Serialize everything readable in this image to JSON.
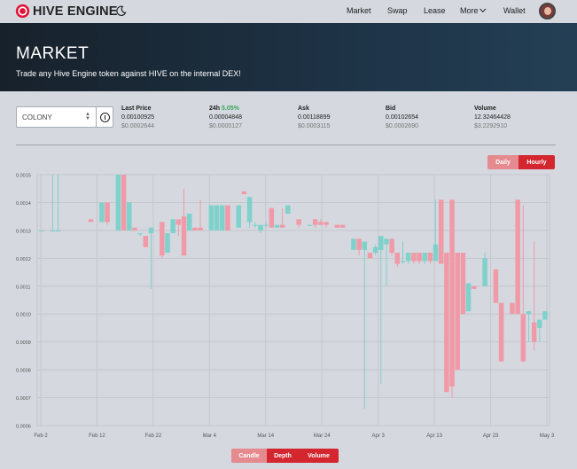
{
  "header": {
    "logo_text": "HIVE ENGINE",
    "nav": [
      {
        "label": "Market"
      },
      {
        "label": "Swap"
      },
      {
        "label": "Lease"
      },
      {
        "label": "More"
      },
      {
        "label": "Wallet"
      }
    ]
  },
  "hero": {
    "title": "MARKET",
    "subtitle": "Trade any Hive Engine token against HIVE on the internal DEX!"
  },
  "token_select": {
    "value": "COLONY"
  },
  "stats": {
    "last_price": {
      "label": "Last Price",
      "value": "0.00100925",
      "usd": "$0.0002644"
    },
    "change_24h": {
      "label": "24h",
      "percent": "5.05%",
      "value": "0.00004848",
      "usd": "$0.0000127"
    },
    "ask": {
      "label": "Ask",
      "value": "0.00118899",
      "usd": "$0.0003115"
    },
    "bid": {
      "label": "Bid",
      "value": "0.00102654",
      "usd": "$0.0002690"
    },
    "volume": {
      "label": "Volume",
      "value": "12.32464428",
      "usd": "$3.2292910"
    }
  },
  "interval_buttons": {
    "daily": "Daily",
    "hourly": "Hourly"
  },
  "chart_buttons": {
    "candle": "Candle",
    "depth": "Depth",
    "volume": "Volume"
  },
  "colors": {
    "up": "#7fd1cb",
    "down": "#f09aa7",
    "accent": "#d3262f",
    "accent_light": "#e58a8f"
  },
  "chart_data": {
    "type": "candlestick",
    "x_ticks": [
      "Feb 2",
      "Feb 12",
      "Feb 22",
      "Mar 4",
      "Mar 14",
      "Mar 24",
      "Apr 3",
      "Apr 13",
      "Apr 23",
      "May 3"
    ],
    "y_ticks": [
      "0.0015",
      "0.0014",
      "0.0013",
      "0.0012",
      "0.0011",
      "0.0010",
      "0.0009",
      "0.0008",
      "0.0007",
      "0.0006"
    ],
    "ylim": [
      0.0006,
      0.0015
    ],
    "xlim": [
      0,
      92
    ],
    "grid": true,
    "candles": [
      {
        "x": 0,
        "open": 0.0013,
        "close": 0.0013,
        "high": 0.0013,
        "low": 0.0013
      },
      {
        "x": 2,
        "open": 0.0013,
        "close": 0.0013,
        "high": 0.0015,
        "low": 0.0013
      },
      {
        "x": 3,
        "open": 0.0013,
        "close": 0.0013,
        "high": 0.0015,
        "low": 0.0013
      },
      {
        "x": 9,
        "open": 0.00134,
        "close": 0.00133,
        "high": 0.00134,
        "low": 0.00133
      },
      {
        "x": 11,
        "open": 0.00133,
        "close": 0.0014,
        "high": 0.0014,
        "low": 0.00133
      },
      {
        "x": 12,
        "open": 0.0014,
        "close": 0.00133,
        "high": 0.0014,
        "low": 0.00132
      },
      {
        "x": 14,
        "open": 0.0013,
        "close": 0.0015,
        "high": 0.0015,
        "low": 0.0013
      },
      {
        "x": 15,
        "open": 0.0015,
        "close": 0.0013,
        "high": 0.0015,
        "low": 0.0013
      },
      {
        "x": 16,
        "open": 0.0013,
        "close": 0.0014,
        "high": 0.0014,
        "low": 0.0013
      },
      {
        "x": 17,
        "open": 0.00131,
        "close": 0.0013,
        "high": 0.00131,
        "low": 0.0013
      },
      {
        "x": 18,
        "open": 0.00129,
        "close": 0.00129,
        "high": 0.00129,
        "low": 0.00128
      },
      {
        "x": 19,
        "open": 0.00128,
        "close": 0.00124,
        "high": 0.00128,
        "low": 0.00124
      },
      {
        "x": 20,
        "open": 0.00129,
        "close": 0.00131,
        "high": 0.00131,
        "low": 0.00109
      },
      {
        "x": 22,
        "open": 0.00133,
        "close": 0.00121,
        "high": 0.00133,
        "low": 0.0012
      },
      {
        "x": 23,
        "open": 0.00122,
        "close": 0.00129,
        "high": 0.00129,
        "low": 0.00122
      },
      {
        "x": 24,
        "open": 0.00129,
        "close": 0.00134,
        "high": 0.00134,
        "low": 0.00129
      },
      {
        "x": 25,
        "open": 0.00134,
        "close": 0.00132,
        "high": 0.00134,
        "low": 0.00128
      },
      {
        "x": 26,
        "open": 0.00135,
        "close": 0.00121,
        "high": 0.00145,
        "low": 0.00121
      },
      {
        "x": 27,
        "open": 0.0013,
        "close": 0.00136,
        "high": 0.00136,
        "low": 0.0013
      },
      {
        "x": 28,
        "open": 0.00131,
        "close": 0.0013,
        "high": 0.00131,
        "low": 0.0013
      },
      {
        "x": 29,
        "open": 0.00131,
        "close": 0.0013,
        "high": 0.00141,
        "low": 0.0013
      },
      {
        "x": 31,
        "open": 0.0013,
        "close": 0.00139,
        "high": 0.00139,
        "low": 0.0013
      },
      {
        "x": 32,
        "open": 0.0013,
        "close": 0.00139,
        "high": 0.00139,
        "low": 0.0013
      },
      {
        "x": 33,
        "open": 0.0013,
        "close": 0.00139,
        "high": 0.00139,
        "low": 0.0013
      },
      {
        "x": 34,
        "open": 0.00139,
        "close": 0.0013,
        "high": 0.00139,
        "low": 0.0013
      },
      {
        "x": 36,
        "open": 0.00131,
        "close": 0.00139,
        "high": 0.00139,
        "low": 0.00131
      },
      {
        "x": 37,
        "open": 0.00144,
        "close": 0.00143,
        "high": 0.00144,
        "low": 0.00143
      },
      {
        "x": 38,
        "open": 0.00133,
        "close": 0.00142,
        "high": 0.00142,
        "low": 0.00131
      },
      {
        "x": 39,
        "open": 0.00132,
        "close": 0.00132,
        "high": 0.00133,
        "low": 0.00131
      },
      {
        "x": 40,
        "open": 0.0013,
        "close": 0.00132,
        "high": 0.00132,
        "low": 0.00129
      },
      {
        "x": 41,
        "open": 0.00132,
        "close": 0.00132,
        "high": 0.00133,
        "low": 0.00131
      },
      {
        "x": 42,
        "open": 0.00138,
        "close": 0.00131,
        "high": 0.00138,
        "low": 0.00131
      },
      {
        "x": 43,
        "open": 0.00131,
        "close": 0.00132,
        "high": 0.00132,
        "low": 0.00131
      },
      {
        "x": 44,
        "open": 0.00132,
        "close": 0.00131,
        "high": 0.00138,
        "low": 0.00131
      },
      {
        "x": 45,
        "open": 0.00136,
        "close": 0.00139,
        "high": 0.00139,
        "low": 0.00136
      },
      {
        "x": 47,
        "open": 0.00134,
        "close": 0.00132,
        "high": 0.00134,
        "low": 0.00131
      },
      {
        "x": 49,
        "open": 0.00132,
        "close": 0.00132,
        "high": 0.00132,
        "low": 0.00132
      },
      {
        "x": 50,
        "open": 0.00134,
        "close": 0.00132,
        "high": 0.00134,
        "low": 0.00131
      },
      {
        "x": 51,
        "open": 0.00133,
        "close": 0.00132,
        "high": 0.00134,
        "low": 0.00132
      },
      {
        "x": 52,
        "open": 0.00133,
        "close": 0.00132,
        "high": 0.00133,
        "low": 0.00131
      },
      {
        "x": 54,
        "open": 0.00132,
        "close": 0.00131,
        "high": 0.00132,
        "low": 0.00131
      },
      {
        "x": 55,
        "open": 0.00132,
        "close": 0.00131,
        "high": 0.00132,
        "low": 0.00131
      },
      {
        "x": 57,
        "open": 0.00123,
        "close": 0.00127,
        "high": 0.00127,
        "low": 0.00123
      },
      {
        "x": 58,
        "open": 0.00127,
        "close": 0.00123,
        "high": 0.00127,
        "low": 0.00121
      },
      {
        "x": 59,
        "open": 0.00123,
        "close": 0.00126,
        "high": 0.00126,
        "low": 0.00066
      },
      {
        "x": 60,
        "open": 0.00122,
        "close": 0.0012,
        "high": 0.00122,
        "low": 0.0012
      },
      {
        "x": 61,
        "open": 0.00122,
        "close": 0.00124,
        "high": 0.00125,
        "low": 0.00121
      },
      {
        "x": 62,
        "open": 0.00123,
        "close": 0.00128,
        "high": 0.00128,
        "low": 0.00075
      },
      {
        "x": 63,
        "open": 0.00125,
        "close": 0.00127,
        "high": 0.00127,
        "low": 0.0011
      },
      {
        "x": 64,
        "open": 0.00127,
        "close": 0.00122,
        "high": 0.00127,
        "low": 0.00121
      },
      {
        "x": 65,
        "open": 0.00122,
        "close": 0.00118,
        "high": 0.00122,
        "low": 0.00117
      },
      {
        "x": 66,
        "open": 0.00119,
        "close": 0.00119,
        "high": 0.00126,
        "low": 0.00118
      },
      {
        "x": 67,
        "open": 0.00119,
        "close": 0.00122,
        "high": 0.00122,
        "low": 0.00118
      },
      {
        "x": 68,
        "open": 0.00122,
        "close": 0.00119,
        "high": 0.00122,
        "low": 0.00118
      },
      {
        "x": 69,
        "open": 0.00122,
        "close": 0.00119,
        "high": 0.00122,
        "low": 0.00118
      },
      {
        "x": 70,
        "open": 0.00119,
        "close": 0.00122,
        "high": 0.00122,
        "low": 0.00118
      },
      {
        "x": 71,
        "open": 0.00122,
        "close": 0.00119,
        "high": 0.00122,
        "low": 0.00118
      },
      {
        "x": 72,
        "open": 0.00119,
        "close": 0.00125,
        "high": 0.00141,
        "low": 0.00119
      },
      {
        "x": 73,
        "open": 0.00141,
        "close": 0.00118,
        "high": 0.00141,
        "low": 0.00118
      },
      {
        "x": 74,
        "open": 0.00122,
        "close": 0.00072,
        "high": 0.00122,
        "low": 0.00072
      },
      {
        "x": 75,
        "open": 0.00141,
        "close": 0.00074,
        "high": 0.00141,
        "low": 0.0007
      },
      {
        "x": 76,
        "open": 0.00122,
        "close": 0.0008,
        "high": 0.00122,
        "low": 0.0008
      },
      {
        "x": 77,
        "open": 0.00122,
        "close": 0.001,
        "high": 0.00122,
        "low": 0.001
      },
      {
        "x": 78,
        "open": 0.00101,
        "close": 0.00111,
        "high": 0.00111,
        "low": 0.00101
      },
      {
        "x": 79,
        "open": 0.0011,
        "close": 0.00109,
        "high": 0.0011,
        "low": 0.00109
      },
      {
        "x": 81,
        "open": 0.0011,
        "close": 0.0012,
        "high": 0.00122,
        "low": 0.0011
      },
      {
        "x": 83,
        "open": 0.00116,
        "close": 0.00104,
        "high": 0.00116,
        "low": 0.00104
      },
      {
        "x": 84,
        "open": 0.00104,
        "close": 0.00083,
        "high": 0.00104,
        "low": 0.00083
      },
      {
        "x": 86,
        "open": 0.00104,
        "close": 0.001,
        "high": 0.00104,
        "low": 0.001
      },
      {
        "x": 87,
        "open": 0.00141,
        "close": 0.001,
        "high": 0.00141,
        "low": 0.001
      },
      {
        "x": 88,
        "open": 0.001,
        "close": 0.00083,
        "high": 0.00139,
        "low": 0.00083
      },
      {
        "x": 89,
        "open": 0.001,
        "close": 0.00101,
        "high": 0.00101,
        "low": 0.0009
      },
      {
        "x": 90,
        "open": 0.00097,
        "close": 0.0009,
        "high": 0.00126,
        "low": 0.00087
      },
      {
        "x": 91,
        "open": 0.00095,
        "close": 0.00098,
        "high": 0.00098,
        "low": 0.0009
      },
      {
        "x": 92,
        "open": 0.00098,
        "close": 0.00101,
        "high": 0.00101,
        "low": 0.00098
      }
    ]
  }
}
